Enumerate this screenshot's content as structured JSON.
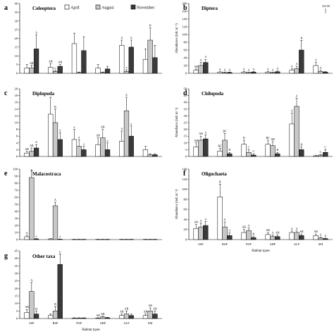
{
  "legend": [
    {
      "name": "April",
      "color": "#ffffff"
    },
    {
      "name": "August",
      "color": "#c8c8c8"
    },
    {
      "name": "November",
      "color": "#3a3a3a"
    }
  ],
  "chart_data": [
    {
      "panel": "a",
      "title": "Coleoptera",
      "type": "bar",
      "categories": [
        "SSF",
        "BSF",
        "PAP",
        "ABF",
        "ALF",
        "SM"
      ],
      "ylim": [
        0,
        40
      ],
      "yticks": [
        0,
        5,
        10,
        15,
        20,
        25,
        30,
        35,
        40
      ],
      "ylabel": "",
      "xlabel": "",
      "show_xticks": false,
      "series": [
        {
          "name": "April",
          "values": [
            3,
            3.5,
            17,
            3,
            16,
            8
          ],
          "errors": [
            2,
            2,
            6,
            2,
            3,
            6
          ]
        },
        {
          "name": "August",
          "values": [
            3,
            1,
            0.5,
            0.5,
            1,
            19
          ],
          "errors": [
            1.5,
            0.5,
            0.2,
            0.2,
            1,
            7
          ]
        },
        {
          "name": "November",
          "values": [
            14,
            4,
            13,
            2.5,
            15,
            9
          ],
          "errors": [
            8,
            1,
            8,
            1.5,
            4,
            7
          ]
        }
      ],
      "labels": [
        [
          "",
          "AB",
          "A"
        ],
        [
          "AB",
          "b",
          "AB"
        ],
        [
          "",
          "",
          ""
        ],
        [
          "",
          "",
          ""
        ],
        [
          "A",
          "a",
          "A"
        ],
        [
          "",
          "B",
          ""
        ]
      ]
    },
    {
      "panel": "b",
      "title": "Diptera",
      "type": "bar",
      "categories": [
        "SSF",
        "BSF",
        "PAP",
        "ABF",
        "ALF",
        "SM"
      ],
      "ylim": [
        0,
        180
      ],
      "yticks": [
        0,
        20,
        40,
        60,
        80,
        100,
        120,
        140,
        160,
        180
      ],
      "ylabel": "Abundance (ind. m⁻²)",
      "xlabel": "",
      "show_xticks": false,
      "offscale_note": "322.00",
      "series": [
        {
          "name": "April",
          "values": [
            8,
            3,
            3,
            3,
            8,
            20
          ],
          "errors": [
            3,
            1,
            2,
            2,
            4,
            8
          ]
        },
        {
          "name": "August",
          "values": [
            20,
            2,
            2,
            2,
            12,
            5
          ],
          "errors": [
            8,
            1,
            1,
            1,
            6,
            3
          ]
        },
        {
          "name": "November",
          "values": [
            28,
            2,
            3,
            4,
            60,
            3
          ],
          "errors": [
            8,
            1,
            2,
            2,
            25,
            2
          ]
        }
      ],
      "labels": [
        [
          "AB",
          "A",
          "A"
        ],
        [
          "A",
          "A",
          "A"
        ],
        [
          "A",
          "A",
          "A"
        ],
        [
          "A",
          "A",
          "A"
        ],
        [
          "A",
          "A",
          "B"
        ],
        [
          "A",
          "A",
          ""
        ]
      ]
    },
    {
      "panel": "c",
      "title": "Diplopoda",
      "type": "bar",
      "categories": [
        "SSF",
        "BSF",
        "PAP",
        "ABF",
        "ALF",
        "SM"
      ],
      "ylim": [
        0,
        20
      ],
      "yticks": [
        0,
        2,
        4,
        6,
        8,
        10,
        12,
        14,
        16,
        18,
        20
      ],
      "ylabel": "",
      "xlabel": "",
      "show_xticks": false,
      "series": [
        {
          "name": "April",
          "values": [
            1,
            12.5,
            5,
            3.5,
            4.5,
            2
          ],
          "errors": [
            0.5,
            5,
            3,
            2,
            3,
            1
          ]
        },
        {
          "name": "August",
          "values": [
            1.5,
            10,
            3,
            5.5,
            13.5,
            0.5
          ],
          "errors": [
            1,
            4,
            2,
            2.5,
            4,
            0.3
          ]
        },
        {
          "name": "November",
          "values": [
            2.5,
            5,
            2,
            2,
            6,
            0.5
          ],
          "errors": [
            1,
            2,
            1,
            2,
            3,
            0.3
          ]
        }
      ],
      "labels": [
        [
          "AB",
          "AB",
          "A"
        ],
        [
          "",
          "B",
          "A"
        ],
        [
          "a",
          "a",
          "a"
        ],
        [
          "AB",
          "AB",
          "a"
        ],
        [
          "A",
          "A",
          "a"
        ],
        [
          "",
          "",
          ""
        ]
      ]
    },
    {
      "panel": "d",
      "title": "Chilopoda",
      "type": "bar",
      "categories": [
        "SSF",
        "BSF",
        "PAP",
        "ABF",
        "ALF",
        "SM"
      ],
      "ylim": [
        0,
        50
      ],
      "yticks": [
        0,
        5,
        10,
        15,
        20,
        25,
        30,
        35,
        40,
        45,
        50
      ],
      "ylabel": "Abundance (ind. m⁻²)",
      "xlabel": "",
      "show_xticks": false,
      "series": [
        {
          "name": "April",
          "values": [
            7,
            4,
            9,
            9,
            24,
            0.5
          ],
          "errors": [
            3,
            2,
            3,
            3,
            8,
            0.3
          ]
        },
        {
          "name": "August",
          "values": [
            12,
            12,
            3,
            8,
            37,
            1
          ],
          "errors": [
            3,
            5,
            2,
            3,
            6,
            0.5
          ]
        },
        {
          "name": "November",
          "values": [
            13,
            2,
            1,
            2,
            5,
            3
          ],
          "errors": [
            3,
            1,
            1,
            1,
            2,
            2
          ]
        }
      ],
      "labels": [
        [
          "AB",
          "AB",
          "A"
        ],
        [
          "BC",
          "BC",
          "B"
        ],
        [
          "D",
          "C",
          "C"
        ],
        [
          "BC",
          "AB",
          "B"
        ],
        [
          "A",
          "A",
          "B"
        ],
        [
          "",
          "C",
          "C"
        ]
      ]
    },
    {
      "panel": "e",
      "title": "Malacostraca",
      "type": "bar",
      "categories": [
        "SSF",
        "BSF",
        "PAP",
        "ABF",
        "ALF",
        "SM"
      ],
      "ylim": [
        0,
        100
      ],
      "yticks": [
        0,
        10,
        20,
        30,
        40,
        50,
        60,
        70,
        80,
        90,
        100
      ],
      "ylabel": "",
      "xlabel": "",
      "show_xticks": false,
      "series": [
        {
          "name": "April",
          "values": [
            4,
            1,
            0.3,
            0.3,
            0.3,
            0.3
          ],
          "errors": [
            2,
            0.5,
            0.2,
            0.2,
            0.2,
            0.2
          ]
        },
        {
          "name": "August",
          "values": [
            88,
            48,
            0.3,
            0.3,
            0.3,
            0.3
          ],
          "errors": [
            10,
            5,
            0.2,
            0.2,
            0.2,
            0.2
          ]
        },
        {
          "name": "November",
          "values": [
            1,
            0.5,
            0.3,
            0.3,
            0.3,
            0.3
          ],
          "errors": [
            0.5,
            0.3,
            0.2,
            0.2,
            0.2,
            0.2
          ]
        }
      ],
      "labels": [
        [
          "A",
          "A",
          "a"
        ],
        [
          "",
          "A",
          "a"
        ],
        [
          "",
          "",
          ""
        ],
        [
          "",
          "",
          ""
        ],
        [
          "",
          "",
          ""
        ],
        [
          "",
          "",
          ""
        ]
      ]
    },
    {
      "panel": "f",
      "title": "Oligochaeta",
      "type": "bar",
      "categories": [
        "SSF",
        "BSF",
        "PAP",
        "ABF",
        "ALF",
        "SM"
      ],
      "ylim": [
        0,
        140
      ],
      "yticks": [
        0,
        20,
        40,
        60,
        80,
        100,
        120,
        140
      ],
      "ylabel": "Abundance (ind. m⁻²)",
      "xlabel": "Habitat types",
      "show_xticks": true,
      "series": [
        {
          "name": "April",
          "values": [
            22,
            85,
            14,
            10,
            14,
            8
          ],
          "errors": [
            8,
            25,
            6,
            4,
            3,
            3
          ]
        },
        {
          "name": "August",
          "values": [
            25,
            25,
            18,
            6,
            14,
            3
          ],
          "errors": [
            8,
            10,
            5,
            3,
            3,
            2
          ]
        },
        {
          "name": "November",
          "values": [
            28,
            8,
            4,
            6,
            8,
            2
          ],
          "errors": [
            8,
            5,
            2,
            3,
            3,
            1
          ]
        }
      ],
      "labels": [
        [
          "AB",
          "A",
          "A"
        ],
        [
          "B",
          "A",
          "A"
        ],
        [
          "AB",
          "A",
          "B"
        ],
        [
          "AB",
          "A",
          "AB"
        ],
        [
          "A",
          "A",
          "AB"
        ],
        [
          "AB",
          "A",
          "A"
        ]
      ]
    },
    {
      "panel": "g",
      "title": "Other taxa",
      "type": "bar",
      "categories": [
        "SSF",
        "BSF",
        "PAP",
        "ABF",
        "ALF",
        "SM"
      ],
      "ylim": [
        0,
        45
      ],
      "yticks": [
        0,
        5,
        10,
        15,
        20,
        25,
        30,
        35,
        40,
        45
      ],
      "ylabel": "",
      "xlabel": "Habitat types",
      "show_xticks": true,
      "series": [
        {
          "name": "April",
          "values": [
            4,
            2,
            0.3,
            0.3,
            2,
            2
          ],
          "errors": [
            2,
            1,
            0.2,
            0.2,
            1,
            1
          ]
        },
        {
          "name": "August",
          "values": [
            18,
            5,
            0.3,
            1,
            3,
            5
          ],
          "errors": [
            6,
            3,
            0.2,
            0.5,
            2,
            2
          ]
        },
        {
          "name": "November",
          "values": [
            3,
            36,
            0.3,
            0.5,
            2,
            3
          ],
          "errors": [
            2,
            7,
            0.2,
            0.3,
            1,
            2
          ]
        }
      ],
      "labels": [
        [
          "AB",
          "A",
          "ab"
        ],
        [
          "",
          "B",
          "C"
        ],
        [
          "",
          "",
          ""
        ],
        [
          "AB",
          "AB",
          ""
        ],
        [
          "AB",
          "AB",
          ""
        ],
        [
          "AB",
          "AB",
          "AB"
        ]
      ]
    }
  ]
}
